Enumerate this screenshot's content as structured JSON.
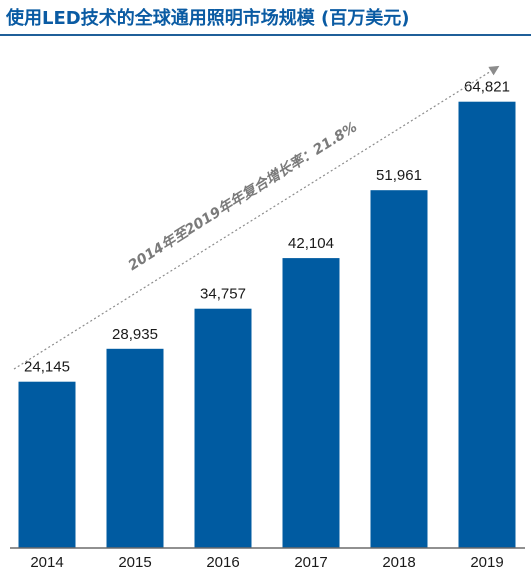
{
  "title": "使用LED技术的全球通用照明市场规模 (百万美元)",
  "colors": {
    "bar": "#005ba1",
    "title": "#0a5ba3",
    "rule": "#1f5f99",
    "trend": "#8c8c8c",
    "text": "#1a1a1a"
  },
  "chart_data": {
    "type": "bar",
    "title": "使用LED技术的全球通用照明市场规模 (百万美元)",
    "categories": [
      "2014",
      "2015",
      "2016",
      "2017",
      "2018",
      "2019"
    ],
    "values": [
      24145,
      28935,
      34757,
      42104,
      51961,
      64821
    ],
    "value_labels": [
      "24,145",
      "28,935",
      "34,757",
      "42,104",
      "51,961",
      "64,821"
    ],
    "ylim": [
      0,
      70000
    ],
    "xlabel": "",
    "ylabel": "",
    "grid": false,
    "legend": "none",
    "annotation": "2014年至2019年年复合增长率：21.8%"
  }
}
